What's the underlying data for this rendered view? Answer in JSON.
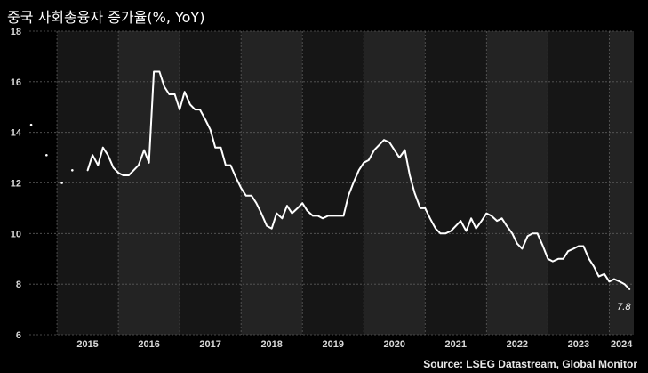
{
  "title": "중국 사회총융자 증가율(%, YoY)",
  "source": "Source: LSEG Datastream, Global Monitor",
  "colors": {
    "background": "#000000",
    "band_dark": "#161616",
    "band_light": "#232323",
    "line": "#ffffff",
    "grid": "#5a5a5a"
  },
  "chart_data": {
    "type": "line",
    "title": "중국 사회총융자 증가율(%, YoY)",
    "ylim": [
      6,
      18
    ],
    "yticks": [
      "6",
      "8",
      "10",
      "12",
      "14",
      "16",
      "18"
    ],
    "xlim": [
      2014.55,
      2024.4
    ],
    "years": [
      "2015",
      "2016",
      "2017",
      "2018",
      "2019",
      "2020",
      "2021",
      "2022",
      "2023",
      "2024"
    ],
    "grid": true,
    "end_label": "7.8",
    "isolated_points": [
      [
        2014.58,
        14.3
      ],
      [
        2014.83,
        13.1
      ],
      [
        2015.08,
        12.0
      ],
      [
        2015.25,
        12.5
      ]
    ],
    "series": [
      {
        "values": [
          [
            2015.5,
            12.5
          ],
          [
            2015.58,
            13.1
          ],
          [
            2015.67,
            12.7
          ],
          [
            2015.75,
            13.4
          ],
          [
            2015.83,
            13.1
          ],
          [
            2015.92,
            12.6
          ],
          [
            2016.0,
            12.4
          ],
          [
            2016.08,
            12.3
          ],
          [
            2016.17,
            12.3
          ],
          [
            2016.25,
            12.5
          ],
          [
            2016.33,
            12.7
          ],
          [
            2016.42,
            13.3
          ],
          [
            2016.5,
            12.8
          ],
          [
            2016.58,
            16.4
          ],
          [
            2016.67,
            16.4
          ],
          [
            2016.75,
            15.8
          ],
          [
            2016.83,
            15.5
          ],
          [
            2016.92,
            15.5
          ],
          [
            2017.0,
            14.9
          ],
          [
            2017.08,
            15.6
          ],
          [
            2017.17,
            15.1
          ],
          [
            2017.25,
            14.9
          ],
          [
            2017.33,
            14.9
          ],
          [
            2017.42,
            14.5
          ],
          [
            2017.5,
            14.1
          ],
          [
            2017.58,
            13.4
          ],
          [
            2017.67,
            13.4
          ],
          [
            2017.75,
            12.7
          ],
          [
            2017.83,
            12.7
          ],
          [
            2017.92,
            12.2
          ],
          [
            2018.0,
            11.8
          ],
          [
            2018.08,
            11.5
          ],
          [
            2018.17,
            11.5
          ],
          [
            2018.25,
            11.2
          ],
          [
            2018.33,
            10.8
          ],
          [
            2018.42,
            10.3
          ],
          [
            2018.5,
            10.2
          ],
          [
            2018.58,
            10.8
          ],
          [
            2018.67,
            10.6
          ],
          [
            2018.75,
            11.1
          ],
          [
            2018.83,
            10.8
          ],
          [
            2018.92,
            11.0
          ],
          [
            2019.0,
            11.2
          ],
          [
            2019.08,
            10.9
          ],
          [
            2019.17,
            10.7
          ],
          [
            2019.25,
            10.7
          ],
          [
            2019.33,
            10.6
          ],
          [
            2019.42,
            10.7
          ],
          [
            2019.5,
            10.7
          ],
          [
            2019.58,
            10.7
          ],
          [
            2019.67,
            10.7
          ],
          [
            2019.75,
            11.5
          ],
          [
            2019.83,
            12.0
          ],
          [
            2019.92,
            12.5
          ],
          [
            2020.0,
            12.8
          ],
          [
            2020.08,
            12.9
          ],
          [
            2020.17,
            13.3
          ],
          [
            2020.25,
            13.5
          ],
          [
            2020.33,
            13.7
          ],
          [
            2020.42,
            13.6
          ],
          [
            2020.5,
            13.3
          ],
          [
            2020.58,
            13.0
          ],
          [
            2020.67,
            13.3
          ],
          [
            2020.75,
            12.3
          ],
          [
            2020.83,
            11.6
          ],
          [
            2020.92,
            11.0
          ],
          [
            2021.0,
            11.0
          ],
          [
            2021.08,
            10.6
          ],
          [
            2021.17,
            10.2
          ],
          [
            2021.25,
            10.0
          ],
          [
            2021.33,
            10.0
          ],
          [
            2021.42,
            10.1
          ],
          [
            2021.5,
            10.3
          ],
          [
            2021.58,
            10.5
          ],
          [
            2021.67,
            10.1
          ],
          [
            2021.75,
            10.6
          ],
          [
            2021.83,
            10.2
          ],
          [
            2021.92,
            10.5
          ],
          [
            2022.0,
            10.8
          ],
          [
            2022.08,
            10.7
          ],
          [
            2022.17,
            10.5
          ],
          [
            2022.25,
            10.6
          ],
          [
            2022.33,
            10.3
          ],
          [
            2022.42,
            10.0
          ],
          [
            2022.5,
            9.6
          ],
          [
            2022.58,
            9.4
          ],
          [
            2022.67,
            9.9
          ],
          [
            2022.75,
            10.0
          ],
          [
            2022.83,
            10.0
          ],
          [
            2022.92,
            9.5
          ],
          [
            2023.0,
            9.0
          ],
          [
            2023.08,
            8.9
          ],
          [
            2023.17,
            9.0
          ],
          [
            2023.25,
            9.0
          ],
          [
            2023.33,
            9.3
          ],
          [
            2023.42,
            9.4
          ],
          [
            2023.5,
            9.5
          ],
          [
            2023.58,
            9.5
          ],
          [
            2023.67,
            9.0
          ],
          [
            2023.75,
            8.7
          ],
          [
            2023.83,
            8.3
          ],
          [
            2023.92,
            8.4
          ],
          [
            2024.0,
            8.1
          ],
          [
            2024.08,
            8.2
          ],
          [
            2024.17,
            8.1
          ],
          [
            2024.25,
            8.0
          ],
          [
            2024.33,
            7.8
          ]
        ]
      }
    ]
  }
}
